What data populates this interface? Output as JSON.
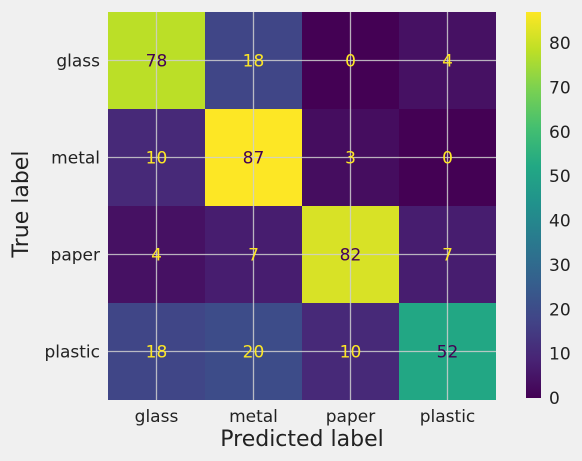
{
  "chart_data": {
    "type": "heatmap",
    "colormap": "viridis",
    "x_categories": [
      "glass",
      "metal",
      "paper",
      "plastic"
    ],
    "y_categories": [
      "glass",
      "metal",
      "paper",
      "plastic"
    ],
    "values": [
      [
        78,
        18,
        0,
        4
      ],
      [
        10,
        87,
        3,
        0
      ],
      [
        4,
        7,
        82,
        7
      ],
      [
        18,
        20,
        10,
        52
      ]
    ],
    "xlabel": "Predicted label",
    "ylabel": "True label",
    "colorbar": {
      "min": 0,
      "max": 87,
      "ticks": [
        0,
        10,
        20,
        30,
        40,
        50,
        60,
        70,
        80
      ]
    },
    "grid": true,
    "text_colors": {
      "light": "#fde725",
      "dark": "#440154"
    }
  }
}
